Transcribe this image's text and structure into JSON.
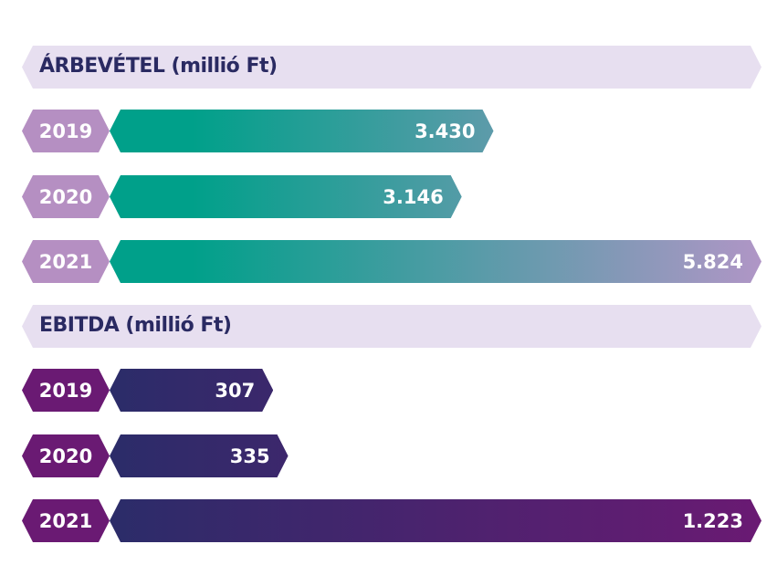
{
  "chart_data": [
    {
      "type": "bar",
      "title": "ÁRBEVÉTEL (millió Ft)",
      "categories": [
        "2019",
        "2020",
        "2021"
      ],
      "values": [
        3430,
        3146,
        5824
      ],
      "value_labels": [
        "3.430",
        "3.146",
        "5.824"
      ],
      "orientation": "horizontal",
      "colors": {
        "year": "#b58fc2",
        "bar_start": "#00a08a",
        "bar_end": "#b096c6"
      }
    },
    {
      "type": "bar",
      "title": "EBITDA (millió Ft)",
      "categories": [
        "2019",
        "2020",
        "2021"
      ],
      "values": [
        307,
        335,
        1223
      ],
      "value_labels": [
        "307",
        "335",
        "1.223"
      ],
      "orientation": "horizontal",
      "colors": {
        "year": "#6a1a73",
        "bar_start": "#2b2c69",
        "bar_end": "#6a1a73"
      }
    }
  ]
}
